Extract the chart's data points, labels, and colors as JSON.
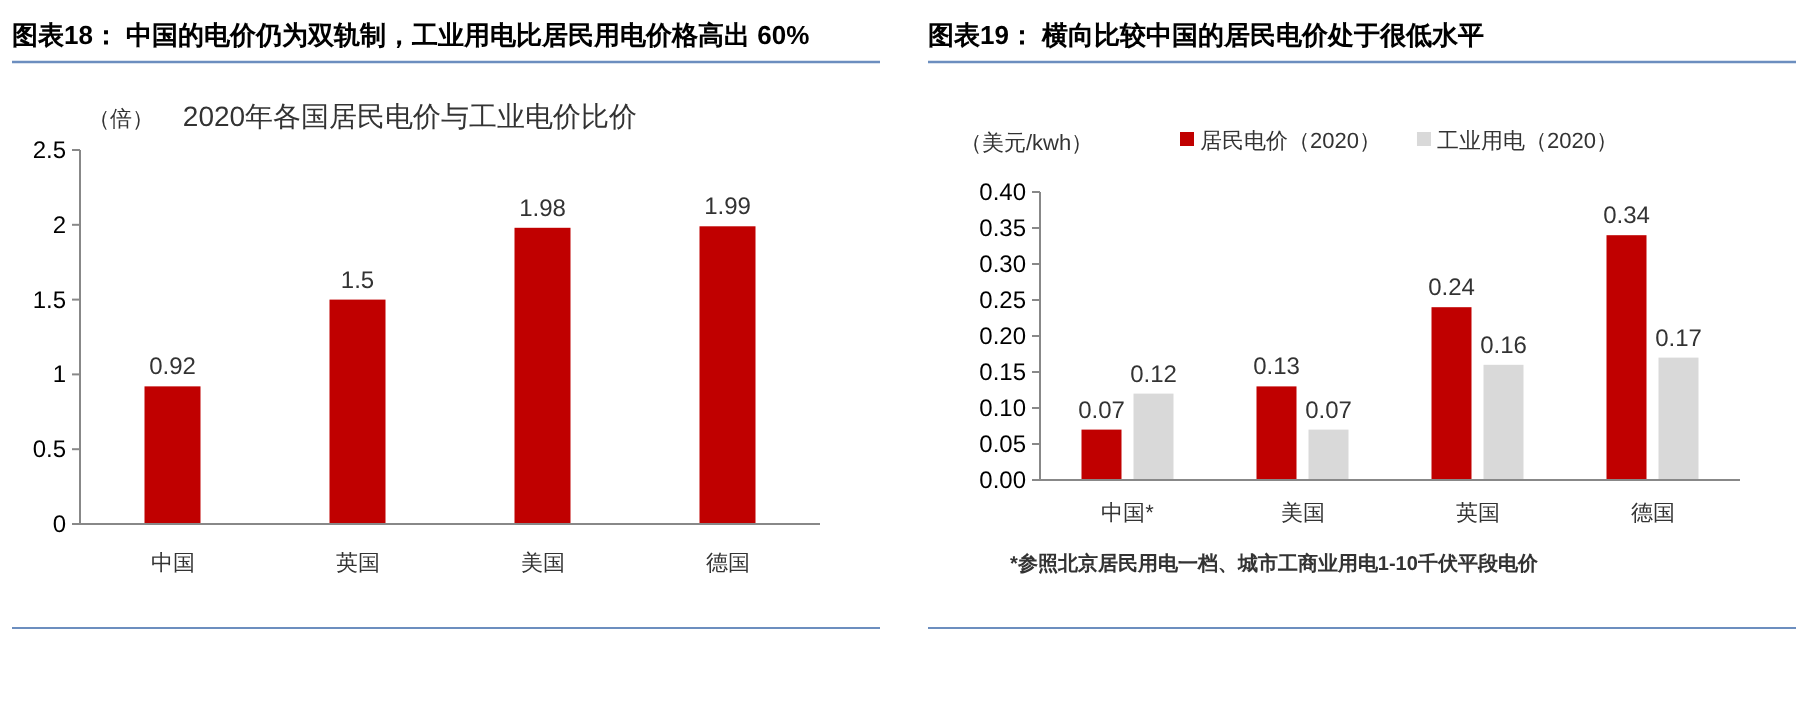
{
  "chart_data": [
    {
      "type": "bar",
      "title": "图表18： 中国的电价仍为双轨制，工业用电比居民用电价格高出 60%",
      "subtitle": "2020年各国居民电价与工业电价比价",
      "ylabel": "（倍）",
      "categories": [
        "中国",
        "英国",
        "美国",
        "德国"
      ],
      "values": [
        0.92,
        1.5,
        1.98,
        1.99
      ],
      "color": "#c00000",
      "ylim": [
        0,
        2.5
      ],
      "yticks": [
        0,
        0.5,
        1,
        1.5,
        2,
        2.5
      ],
      "data_labels": true,
      "grid": false,
      "legend": false
    },
    {
      "type": "bar",
      "title": "图表19： 横向比较中国的居民电价处于很低水平",
      "ylabel": "（美元/kwh）",
      "categories": [
        "中国*",
        "美国",
        "英国",
        "德国"
      ],
      "series": [
        {
          "name": "居民电价（2020）",
          "color": "#c00000",
          "values": [
            0.07,
            0.13,
            0.24,
            0.34
          ]
        },
        {
          "name": "工业用电（2020）",
          "color": "#d9d9d9",
          "values": [
            0.12,
            0.07,
            0.16,
            0.17
          ]
        }
      ],
      "ylim": [
        0,
        0.4
      ],
      "yticks": [
        {
          "value": 0,
          "label": "0.00"
        },
        {
          "value": 0.05,
          "label": "0.05"
        },
        {
          "value": 0.1,
          "label": "0.10"
        },
        {
          "value": 0.15,
          "label": "0.15"
        },
        {
          "value": 0.2,
          "label": "0.20"
        },
        {
          "value": 0.25,
          "label": "0.25"
        },
        {
          "value": 0.3,
          "label": "0.30"
        },
        {
          "value": 0.35,
          "label": "0.35"
        },
        {
          "value": 0.4,
          "label": "0.40"
        }
      ],
      "data_labels": true,
      "grid": false,
      "legend": "top",
      "annotations": [
        "*参照北京居民用电一档、城市工商业用电1-10千伏平段电价"
      ]
    }
  ]
}
